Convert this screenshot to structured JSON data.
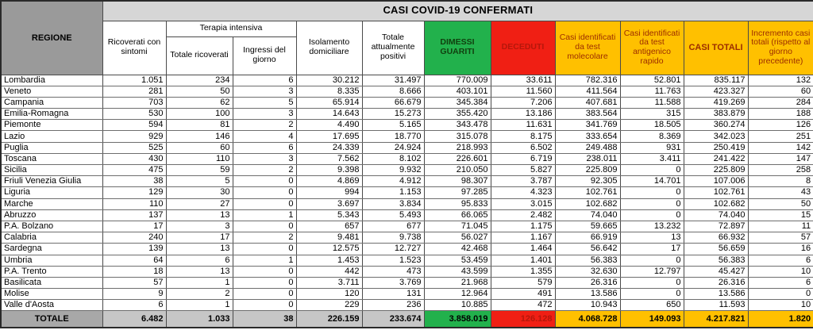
{
  "colors": {
    "green": "#22b14c",
    "red": "#f01f14",
    "orange": "#ffc000",
    "header_gray": "#9a9a9a",
    "title_band_gray": "#d6d6d6",
    "totale_gray": "#c6c6c6",
    "totale_label_gray": "#a8a8a8"
  },
  "chart_data": {
    "type": "table",
    "title": "CASI COVID-19 CONFERMATI",
    "row_header": "REGIONE",
    "column_groups": {
      "terapia_intensiva": "Terapia intensiva"
    },
    "columns": [
      "Ricoverati con sintomi",
      "Totale ricoverati",
      "Ingressi del giorno",
      "Isolamento domiciliare",
      "Totale attualmente positivi",
      "DIMESSI GUARITI",
      "DECEDUTI",
      "Casi identificati da test molecolare",
      "Casi identificati da test antigenico rapido",
      "CASI TOTALI",
      "Incremento casi totali (rispetto al giorno precedente)"
    ],
    "value_keys": [
      "ricoverati-con-sintomi",
      "terapia-intensiva-totale",
      "terapia-intensiva-ingressi",
      "isolamento-domiciliare",
      "totale-attualmente-positivi",
      "dimessi-guariti",
      "deceduti",
      "casi-test-molecolare",
      "casi-test-antigenico",
      "casi-totali",
      "incremento-casi-totali"
    ],
    "rows": [
      {
        "regione": "Lombardia",
        "values": [
          "1.051",
          "234",
          "6",
          "30.212",
          "31.497",
          "770.009",
          "33.611",
          "782.316",
          "52.801",
          "835.117",
          "132"
        ]
      },
      {
        "regione": "Veneto",
        "values": [
          "281",
          "50",
          "3",
          "8.335",
          "8.666",
          "403.101",
          "11.560",
          "411.564",
          "11.763",
          "423.327",
          "60"
        ]
      },
      {
        "regione": "Campania",
        "values": [
          "703",
          "62",
          "5",
          "65.914",
          "66.679",
          "345.384",
          "7.206",
          "407.681",
          "11.588",
          "419.269",
          "284"
        ]
      },
      {
        "regione": "Emilia-Romagna",
        "values": [
          "530",
          "100",
          "3",
          "14.643",
          "15.273",
          "355.420",
          "13.186",
          "383.564",
          "315",
          "383.879",
          "188"
        ]
      },
      {
        "regione": "Piemonte",
        "values": [
          "594",
          "81",
          "2",
          "4.490",
          "5.165",
          "343.478",
          "11.631",
          "341.769",
          "18.505",
          "360.274",
          "126"
        ]
      },
      {
        "regione": "Lazio",
        "values": [
          "929",
          "146",
          "4",
          "17.695",
          "18.770",
          "315.078",
          "8.175",
          "333.654",
          "8.369",
          "342.023",
          "251"
        ]
      },
      {
        "regione": "Puglia",
        "values": [
          "525",
          "60",
          "6",
          "24.339",
          "24.924",
          "218.993",
          "6.502",
          "249.488",
          "931",
          "250.419",
          "142"
        ]
      },
      {
        "regione": "Toscana",
        "values": [
          "430",
          "110",
          "3",
          "7.562",
          "8.102",
          "226.601",
          "6.719",
          "238.011",
          "3.411",
          "241.422",
          "147"
        ]
      },
      {
        "regione": "Sicilia",
        "values": [
          "475",
          "59",
          "2",
          "9.398",
          "9.932",
          "210.050",
          "5.827",
          "225.809",
          "0",
          "225.809",
          "258"
        ]
      },
      {
        "regione": "Friuli Venezia Giulia",
        "values": [
          "38",
          "5",
          "0",
          "4.869",
          "4.912",
          "98.307",
          "3.787",
          "92.305",
          "14.701",
          "107.006",
          "8"
        ]
      },
      {
        "regione": "Liguria",
        "values": [
          "129",
          "30",
          "0",
          "994",
          "1.153",
          "97.285",
          "4.323",
          "102.761",
          "0",
          "102.761",
          "43"
        ]
      },
      {
        "regione": "Marche",
        "values": [
          "110",
          "27",
          "0",
          "3.697",
          "3.834",
          "95.833",
          "3.015",
          "102.682",
          "0",
          "102.682",
          "50"
        ]
      },
      {
        "regione": "Abruzzo",
        "values": [
          "137",
          "13",
          "1",
          "5.343",
          "5.493",
          "66.065",
          "2.482",
          "74.040",
          "0",
          "74.040",
          "15"
        ]
      },
      {
        "regione": "P.A. Bolzano",
        "values": [
          "17",
          "3",
          "0",
          "657",
          "677",
          "71.045",
          "1.175",
          "59.665",
          "13.232",
          "72.897",
          "11"
        ]
      },
      {
        "regione": "Calabria",
        "values": [
          "240",
          "17",
          "2",
          "9.481",
          "9.738",
          "56.027",
          "1.167",
          "66.919",
          "13",
          "66.932",
          "57"
        ]
      },
      {
        "regione": "Sardegna",
        "values": [
          "139",
          "13",
          "0",
          "12.575",
          "12.727",
          "42.468",
          "1.464",
          "56.642",
          "17",
          "56.659",
          "16"
        ]
      },
      {
        "regione": "Umbria",
        "values": [
          "64",
          "6",
          "1",
          "1.453",
          "1.523",
          "53.459",
          "1.401",
          "56.383",
          "0",
          "56.383",
          "6"
        ]
      },
      {
        "regione": "P.A. Trento",
        "values": [
          "18",
          "13",
          "0",
          "442",
          "473",
          "43.599",
          "1.355",
          "32.630",
          "12.797",
          "45.427",
          "10"
        ]
      },
      {
        "regione": "Basilicata",
        "values": [
          "57",
          "1",
          "0",
          "3.711",
          "3.769",
          "21.968",
          "579",
          "26.316",
          "0",
          "26.316",
          "6"
        ]
      },
      {
        "regione": "Molise",
        "values": [
          "9",
          "2",
          "0",
          "120",
          "131",
          "12.964",
          "491",
          "13.586",
          "0",
          "13.586",
          "0"
        ]
      },
      {
        "regione": "Valle d'Aosta",
        "values": [
          "6",
          "1",
          "0",
          "229",
          "236",
          "10.885",
          "472",
          "10.943",
          "650",
          "11.593",
          "10"
        ]
      }
    ],
    "totale": {
      "label": "TOTALE",
      "values": [
        "6.482",
        "1.033",
        "38",
        "226.159",
        "233.674",
        "3.858.019",
        "126.128",
        "4.068.728",
        "149.093",
        "4.217.821",
        "1.820"
      ]
    }
  }
}
